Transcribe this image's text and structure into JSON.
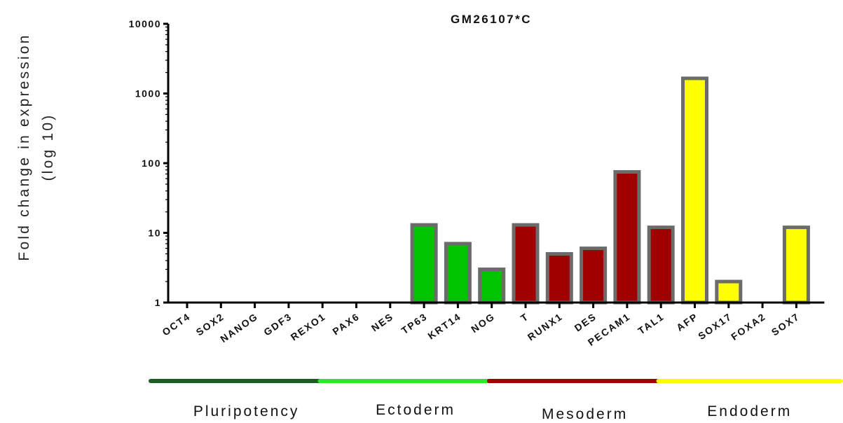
{
  "chart_data": {
    "type": "bar",
    "title": "GM26107*C",
    "ylabel_line1": "Fold change in expression",
    "ylabel_line2": "(log 10)",
    "yscale": "log",
    "ylim": [
      1,
      10000
    ],
    "yticks": [
      {
        "value": 1,
        "label": "1"
      },
      {
        "value": 10,
        "label": "10"
      },
      {
        "value": 100,
        "label": "100"
      },
      {
        "value": 1000,
        "label": "1000"
      },
      {
        "value": 10000,
        "label": "10000"
      }
    ],
    "categories": [
      "OCT4",
      "SOX2",
      "NANOG",
      "GDF3",
      "REXO1",
      "PAX6",
      "NES",
      "TP63",
      "KRT14",
      "NOG",
      "T",
      "RUNX1",
      "DES",
      "PECAM1",
      "TAL1",
      "AFP",
      "SOX17",
      "FOXA2",
      "SOX7"
    ],
    "values": [
      1,
      1,
      1,
      1,
      1,
      1,
      1,
      13,
      7,
      3,
      13,
      5,
      6,
      75,
      12,
      1650,
      2,
      1,
      12
    ],
    "groups": [
      {
        "name": "Pluripotency",
        "color": "#1b5e20",
        "members": [
          "OCT4",
          "SOX2",
          "NANOG",
          "GDF3",
          "REXO1"
        ]
      },
      {
        "name": "Ectoderm",
        "color": "#00c400",
        "line_color": "#2ee82e",
        "members": [
          "PAX6",
          "NES",
          "TP63",
          "KRT14",
          "NOG"
        ]
      },
      {
        "name": "Mesoderm",
        "color": "#a00000",
        "members": [
          "T",
          "RUNX1",
          "DES",
          "PECAM1",
          "TAL1"
        ]
      },
      {
        "name": "Endoderm",
        "color": "#ffff00",
        "members": [
          "AFP",
          "SOX17",
          "FOXA2",
          "SOX7"
        ]
      }
    ],
    "bar_outline_color": "#6b6b6b",
    "grid": false
  }
}
